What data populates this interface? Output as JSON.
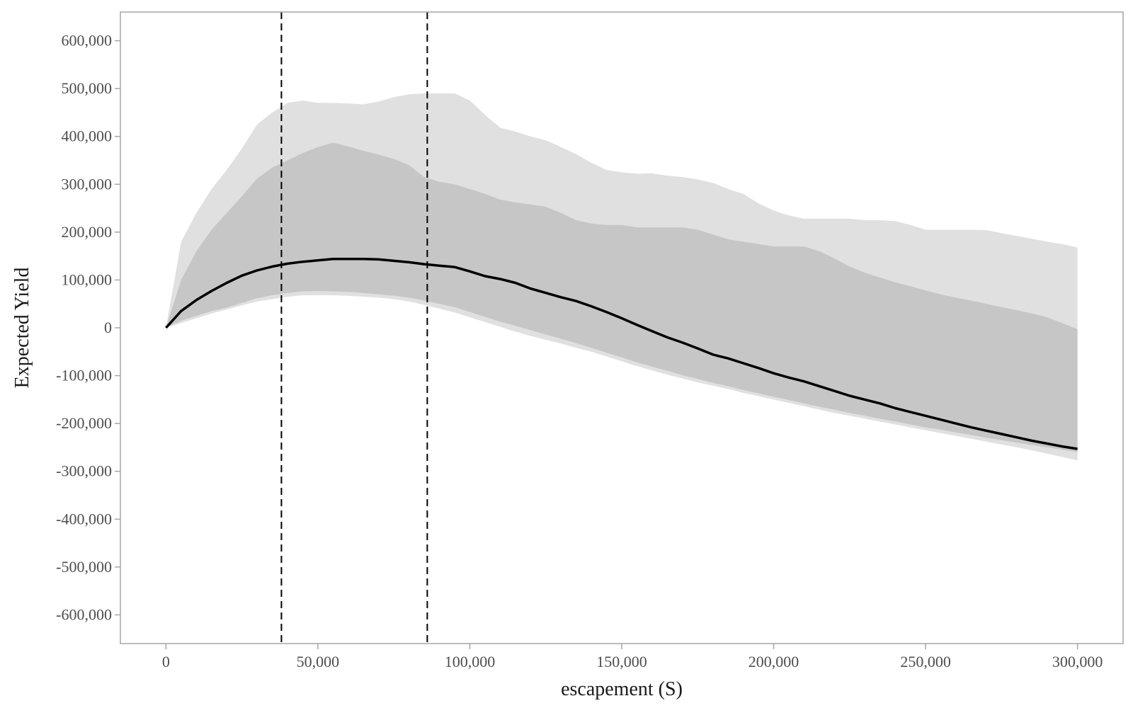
{
  "chart_data": {
    "type": "line",
    "title": "",
    "xlabel": "escapement (S)",
    "ylabel": "Expected Yield",
    "xlim": [
      -15000,
      315000
    ],
    "ylim": [
      -660000,
      660000
    ],
    "x_ticks": [
      0,
      50000,
      100000,
      150000,
      200000,
      250000,
      300000
    ],
    "x_tick_labels": [
      "0",
      "50,000",
      "100,000",
      "150,000",
      "200,000",
      "250,000",
      "300,000"
    ],
    "y_ticks": [
      600000,
      500000,
      400000,
      300000,
      200000,
      100000,
      0,
      -100000,
      -200000,
      -300000,
      -400000,
      -500000,
      -600000
    ],
    "y_tick_labels": [
      "600,000",
      "500,000",
      "400,000",
      "300,000",
      "200,000",
      "100,000",
      "0",
      "-100,000",
      "-200,000",
      "-300,000",
      "-400,000",
      "-500,000",
      "-600,000"
    ],
    "grid": false,
    "colors": {
      "outer_band": "#e0e0e0",
      "inner_band": "#c6c6c6",
      "median_line": "#000000",
      "reference_lines": "#000000",
      "panel_border": "#a6a6a6"
    },
    "reference_lines_x": [
      38000,
      86000
    ],
    "x": [
      0,
      5000,
      10000,
      15000,
      20000,
      25000,
      30000,
      35000,
      40000,
      45000,
      50000,
      55000,
      60000,
      65000,
      70000,
      75000,
      80000,
      85000,
      90000,
      95000,
      100000,
      105000,
      110000,
      115000,
      120000,
      125000,
      130000,
      135000,
      140000,
      145000,
      150000,
      155000,
      160000,
      165000,
      170000,
      175000,
      180000,
      185000,
      190000,
      195000,
      200000,
      205000,
      210000,
      215000,
      220000,
      225000,
      230000,
      235000,
      240000,
      245000,
      250000,
      255000,
      260000,
      265000,
      270000,
      275000,
      280000,
      285000,
      290000,
      295000,
      300000
    ],
    "series": [
      {
        "role": "median",
        "values": [
          0,
          35000,
          58000,
          77000,
          94000,
          109000,
          120000,
          128000,
          134000,
          138000,
          141000,
          144000,
          144000,
          144000,
          143000,
          140000,
          137000,
          133000,
          130000,
          127000,
          118000,
          108000,
          102000,
          94000,
          82000,
          73000,
          64000,
          56000,
          45000,
          33000,
          20000,
          6000,
          -7000,
          -20000,
          -31000,
          -43000,
          -56000,
          -64000,
          -74000,
          -84000,
          -95000,
          -104000,
          -112000,
          -122000,
          -132000,
          -142000,
          -150000,
          -158000,
          -168000,
          -176000,
          -184000,
          -192000,
          -200000,
          -208000,
          -215000,
          -222000,
          -229000,
          -236000,
          -242000,
          -248000,
          -253000
        ]
      },
      {
        "role": "inner_band",
        "lower": [
          0,
          15000,
          25000,
          35000,
          42000,
          52000,
          62000,
          68000,
          73000,
          76000,
          77000,
          76000,
          75000,
          73000,
          70000,
          67000,
          63000,
          57000,
          50000,
          43000,
          33000,
          23000,
          13000,
          4000,
          -5000,
          -14000,
          -23000,
          -32000,
          -42000,
          -52000,
          -62000,
          -72000,
          -81000,
          -90000,
          -99000,
          -107000,
          -115000,
          -122000,
          -130000,
          -137000,
          -144000,
          -151000,
          -158000,
          -165000,
          -171000,
          -178000,
          -184000,
          -190000,
          -196000,
          -202000,
          -208000,
          -213000,
          -219000,
          -224000,
          -230000,
          -235000,
          -240000,
          -245000,
          -250000,
          -255000,
          -260000
        ],
        "upper": [
          0,
          100000,
          160000,
          205000,
          240000,
          275000,
          312000,
          335000,
          350000,
          365000,
          378000,
          387000,
          379000,
          370000,
          362000,
          353000,
          340000,
          315000,
          305000,
          300000,
          290000,
          280000,
          268000,
          262000,
          258000,
          253000,
          240000,
          225000,
          218000,
          215000,
          215000,
          210000,
          210000,
          210000,
          210000,
          205000,
          195000,
          185000,
          180000,
          175000,
          170000,
          170000,
          170000,
          160000,
          145000,
          128000,
          115000,
          105000,
          95000,
          87000,
          78000,
          70000,
          63000,
          57000,
          50000,
          43000,
          37000,
          30000,
          22000,
          10000,
          -3000
        ]
      },
      {
        "role": "outer_band",
        "lower": [
          0,
          10000,
          20000,
          30000,
          38000,
          47000,
          55000,
          60000,
          65000,
          68000,
          68000,
          68000,
          67000,
          65000,
          63000,
          60000,
          55000,
          48000,
          40000,
          32000,
          22000,
          12000,
          2000,
          -8000,
          -17000,
          -25000,
          -33000,
          -42000,
          -50000,
          -60000,
          -70000,
          -80000,
          -89000,
          -98000,
          -106000,
          -114000,
          -121000,
          -128000,
          -136000,
          -143000,
          -150000,
          -157000,
          -164000,
          -171000,
          -178000,
          -184000,
          -190000,
          -196000,
          -202000,
          -208000,
          -214000,
          -220000,
          -226000,
          -232000,
          -238000,
          -244000,
          -250000,
          -256000,
          -263000,
          -270000,
          -277000
        ],
        "upper": [
          0,
          180000,
          240000,
          290000,
          330000,
          375000,
          425000,
          450000,
          470000,
          475000,
          470000,
          470000,
          469000,
          467000,
          473000,
          482000,
          488000,
          490000,
          490000,
          490000,
          475000,
          445000,
          418000,
          410000,
          400000,
          392000,
          378000,
          363000,
          345000,
          330000,
          325000,
          322000,
          323000,
          318000,
          315000,
          310000,
          303000,
          290000,
          280000,
          260000,
          245000,
          235000,
          228000,
          228000,
          228000,
          228000,
          225000,
          225000,
          223000,
          215000,
          205000,
          205000,
          205000,
          205000,
          204000,
          198000,
          192000,
          186000,
          180000,
          175000,
          168000
        ]
      }
    ]
  }
}
